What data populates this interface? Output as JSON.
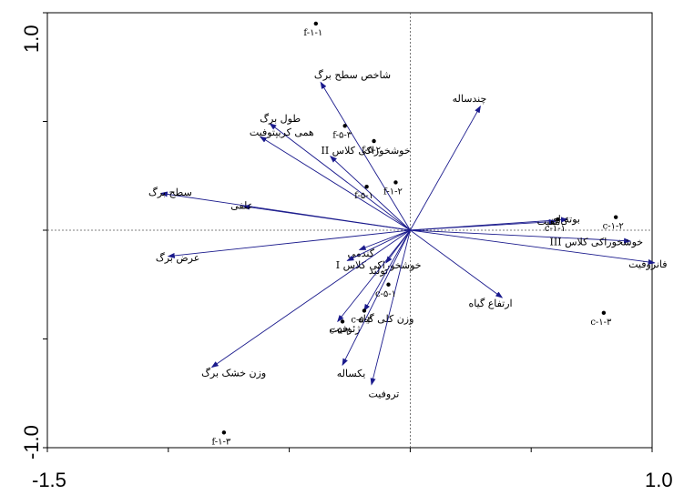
{
  "chart_data": {
    "type": "scatter",
    "title": "",
    "xlabel": "",
    "ylabel": "",
    "xlim": [
      -1.5,
      1.0
    ],
    "ylim": [
      -1.0,
      1.0
    ],
    "x_tick_labels": [
      "-1.5",
      "1.0"
    ],
    "y_tick_labels": [
      "1.0",
      "-1.0"
    ],
    "grid": false,
    "colors": {
      "arrow": "#1a1a8c",
      "point": "#000000",
      "axis": "#000000",
      "zero_line": "#555555"
    },
    "arrows": [
      {
        "label": "چندساله",
        "x": 0.29,
        "y": 0.57
      },
      {
        "label": "شاخص سطح برگ",
        "x": -0.37,
        "y": 0.68
      },
      {
        "label": "طول برگ",
        "x": -0.58,
        "y": 0.49
      },
      {
        "label": "همی کریپتوفیت",
        "x": -0.62,
        "y": 0.43
      },
      {
        "label": "خوشخوراکی کلاس II",
        "x": -0.33,
        "y": 0.34
      },
      {
        "label": "علفی",
        "x": -0.69,
        "y": 0.11
      },
      {
        "label": "سطح برگ",
        "x": -1.03,
        "y": 0.17
      },
      {
        "label": "عرض برگ",
        "x": -1.0,
        "y": -0.12
      },
      {
        "label": "گندمی",
        "x": -0.21,
        "y": -0.09
      },
      {
        "label": "خوشخوراکی کلاس I",
        "x": -0.26,
        "y": -0.14
      },
      {
        "label": "تولید",
        "x": -0.1,
        "y": -0.15
      },
      {
        "label": "وزن کلی گیاه",
        "x": -0.19,
        "y": -0.37
      },
      {
        "label": "وزن خشک برگ",
        "x": -0.82,
        "y": -0.63
      },
      {
        "label": "ژئوفیت",
        "x": -0.3,
        "y": -0.42
      },
      {
        "label": "یکساله",
        "x": -0.28,
        "y": -0.62
      },
      {
        "label": "تروفیت",
        "x": -0.16,
        "y": -0.71
      },
      {
        "label": "ارتفاع گیاه",
        "x": 0.38,
        "y": -0.31
      },
      {
        "label": "کامفیت",
        "x": 0.6,
        "y": 0.04
      },
      {
        "label": "بوته ای",
        "x": 0.65,
        "y": 0.05
      },
      {
        "label": "خوشخوراکی کلاس III",
        "x": 0.91,
        "y": -0.05
      },
      {
        "label": "فانروفیت",
        "x": 1.01,
        "y": -0.15
      }
    ],
    "points": [
      {
        "label": "f-۱-۱",
        "x": -0.39,
        "y": 0.95
      },
      {
        "label": "f-۵-۳",
        "x": -0.27,
        "y": 0.48
      },
      {
        "label": "f-۵-۲",
        "x": -0.15,
        "y": 0.41
      },
      {
        "label": "f-۵-۱",
        "x": -0.18,
        "y": 0.2
      },
      {
        "label": "f-۱-۲",
        "x": -0.06,
        "y": 0.22
      },
      {
        "label": "c-۱-۱",
        "x": 0.61,
        "y": 0.05
      },
      {
        "label": "c-۱-۲",
        "x": 0.85,
        "y": 0.06
      },
      {
        "label": "c-۱-۳",
        "x": 0.8,
        "y": -0.38
      },
      {
        "label": "c-۵-۱",
        "x": -0.09,
        "y": -0.25
      },
      {
        "label": "c-۵-۳",
        "x": -0.19,
        "y": -0.37
      },
      {
        "label": "c-۵-۲",
        "x": -0.28,
        "y": -0.42
      },
      {
        "label": "f-۱-۳",
        "x": -0.77,
        "y": -0.93
      }
    ]
  }
}
